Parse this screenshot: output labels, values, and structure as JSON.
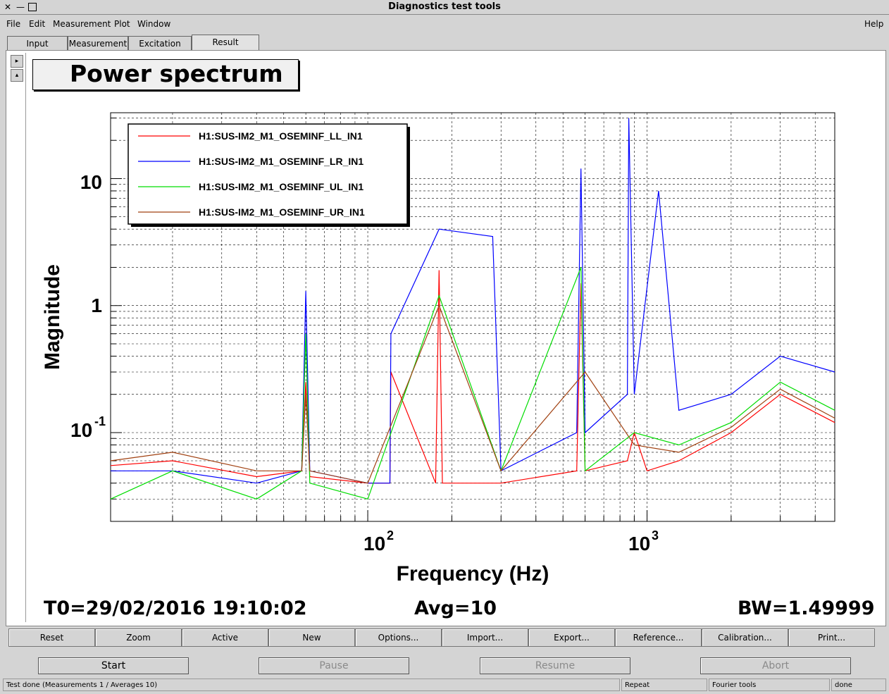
{
  "window": {
    "title": "Diagnostics test tools",
    "close_glyph": "✕",
    "min_glyph": "—",
    "max_glyph": "□"
  },
  "menu": {
    "file": "File",
    "edit": "Edit",
    "measurement": "Measurement",
    "plot": "Plot",
    "window": "Window",
    "help": "Help"
  },
  "tabs": {
    "input": "Input",
    "measurement": "Measurement",
    "excitation": "Excitation",
    "result": "Result",
    "active": "Result"
  },
  "side": {
    "up": "▸",
    "down": "▴"
  },
  "plot": {
    "title": "Power spectrum",
    "t0": "T0=29/02/2016 19:10:02",
    "avg": "Avg=10",
    "bw": "BW=1.49999"
  },
  "chart_data": {
    "type": "line",
    "title": "Power spectrum",
    "xlabel": "Frequency (Hz)",
    "ylabel": "Magnitude",
    "xscale": "log",
    "yscale": "log",
    "xlim": [
      12,
      4700
    ],
    "ylim": [
      0.02,
      33
    ],
    "grid": true,
    "legend_position": "top-left",
    "x_tick_labels": [
      "10^2",
      "10^3"
    ],
    "y_tick_labels": [
      "10^-1",
      "1",
      "10"
    ],
    "series": [
      {
        "name": "H1:SUS-IM2_M1_OSEMINF_LL_IN1",
        "color": "#ff0000",
        "x": [
          12,
          20,
          40,
          58,
          60,
          62,
          100,
          120,
          121,
          175,
          180,
          185,
          300,
          560,
          580,
          600,
          850,
          900,
          1000,
          1300,
          2000,
          3000,
          4700
        ],
        "y": [
          0.055,
          0.06,
          0.045,
          0.05,
          0.25,
          0.045,
          0.04,
          0.04,
          0.3,
          0.04,
          1.9,
          0.04,
          0.04,
          0.05,
          1.5,
          0.05,
          0.06,
          0.1,
          0.05,
          0.06,
          0.1,
          0.2,
          0.12
        ]
      },
      {
        "name": "H1:SUS-IM2_M1_OSEMINF_LR_IN1",
        "color": "#0000ff",
        "x": [
          12,
          20,
          40,
          58,
          60,
          62,
          100,
          120,
          121,
          180,
          280,
          300,
          560,
          580,
          600,
          850,
          860,
          900,
          1100,
          1300,
          2000,
          3000,
          4700
        ],
        "y": [
          0.05,
          0.05,
          0.04,
          0.05,
          1.3,
          0.05,
          0.04,
          0.04,
          0.6,
          4.0,
          3.5,
          0.05,
          0.1,
          12,
          0.1,
          0.2,
          30,
          0.2,
          8,
          0.15,
          0.2,
          0.4,
          0.3
        ]
      },
      {
        "name": "H1:SUS-IM2_M1_OSEMINF_UL_IN1",
        "color": "#00dd00",
        "x": [
          12,
          20,
          40,
          58,
          60,
          62,
          100,
          180,
          300,
          580,
          600,
          900,
          1300,
          2000,
          3000,
          4700
        ],
        "y": [
          0.03,
          0.05,
          0.03,
          0.05,
          0.6,
          0.04,
          0.03,
          1.2,
          0.05,
          2.0,
          0.05,
          0.1,
          0.08,
          0.12,
          0.25,
          0.15
        ]
      },
      {
        "name": "H1:SUS-IM2_M1_OSEMINF_UR_IN1",
        "color": "#a04010",
        "x": [
          12,
          20,
          40,
          58,
          60,
          62,
          100,
          180,
          300,
          600,
          900,
          1300,
          2000,
          3000,
          4700
        ],
        "y": [
          0.06,
          0.07,
          0.05,
          0.05,
          0.2,
          0.05,
          0.04,
          1.0,
          0.05,
          0.3,
          0.08,
          0.07,
          0.11,
          0.22,
          0.13
        ]
      }
    ]
  },
  "toolbar": [
    "Reset",
    "Zoom",
    "Active",
    "New",
    "Options...",
    "Import...",
    "Export...",
    "Reference...",
    "Calibration...",
    "Print..."
  ],
  "run": {
    "start": "Start",
    "pause": "Pause",
    "resume": "Resume",
    "abort": "Abort"
  },
  "status": {
    "message": "Test done (Measurements 1 / Averages 10)",
    "mode": "Repeat",
    "tool": "Fourier tools",
    "state": "done"
  }
}
